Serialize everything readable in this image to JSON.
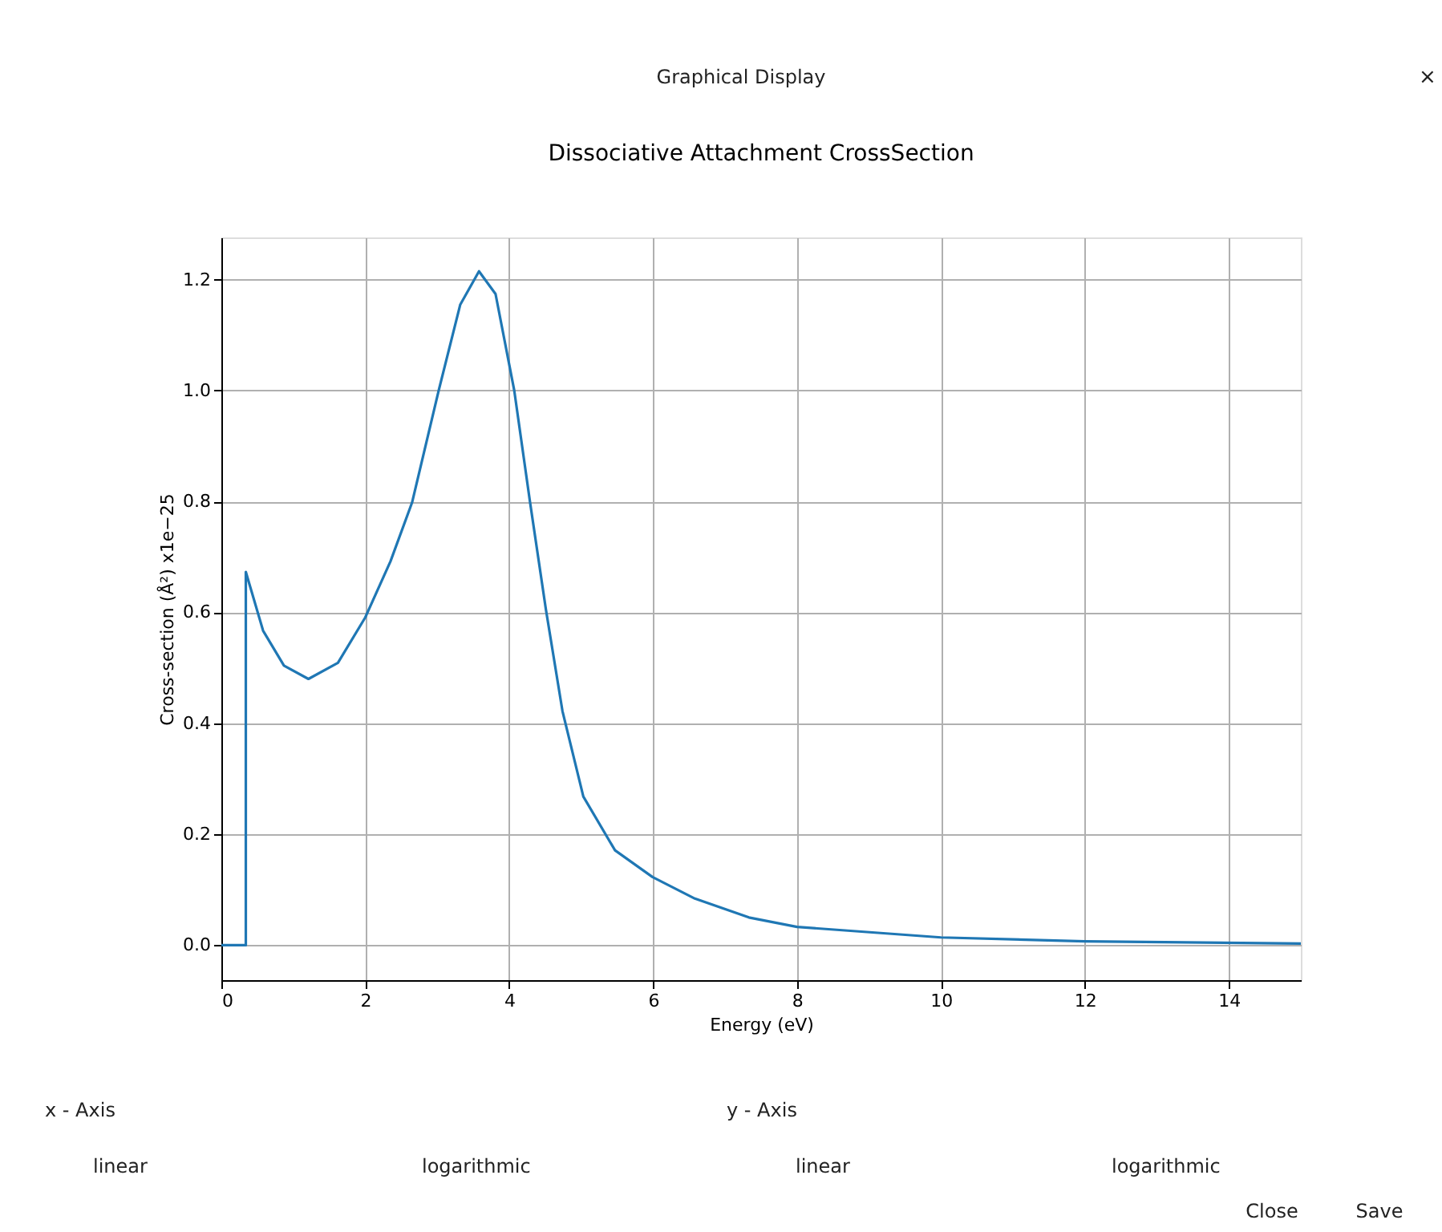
{
  "chart_data": {
    "type": "line",
    "title": "Dissociative Attachment CrossSection",
    "xlabel": "Energy (eV)",
    "ylabel": "Cross-section (Å²) x1e−25",
    "x": [
      0,
      0.34,
      0.34,
      0.58,
      0.87,
      1.21,
      1.62,
      2.0,
      2.35,
      2.65,
      3.02,
      3.32,
      3.58,
      3.81,
      4.07,
      4.29,
      4.51,
      4.74,
      5.03,
      5.47,
      5.99,
      6.58,
      7.33,
      8.0,
      10.0,
      12.0,
      15.0
    ],
    "series": [
      {
        "color": "#1f77b4",
        "values": [
          0,
          0,
          0.673,
          0.567,
          0.504,
          0.48,
          0.509,
          0.591,
          0.692,
          0.798,
          1.0,
          1.155,
          1.215,
          1.174,
          1.0,
          0.798,
          0.605,
          0.422,
          0.268,
          0.171,
          0.123,
          0.084,
          0.05,
          0.033,
          0.014,
          0.007,
          0.003
        ]
      }
    ],
    "xlim": [
      0,
      15
    ],
    "ylim": [
      -0.063,
      1.276
    ],
    "xticks": [
      0,
      2,
      4,
      6,
      8,
      10,
      12,
      14
    ],
    "yticks": [
      {
        "value": 0,
        "label": "0.0"
      },
      0.2,
      0.4,
      0.6,
      0.8,
      {
        "value": 1,
        "label": "1.0"
      },
      1.2
    ],
    "grid": true,
    "marker": "none",
    "line_style": "solid",
    "annotations": [
      "Graphical Display",
      "×",
      "x - Axis",
      "linear",
      "logarithmic",
      "y - Axis",
      "linear",
      "logarithmic",
      "Close",
      "Save"
    ]
  }
}
